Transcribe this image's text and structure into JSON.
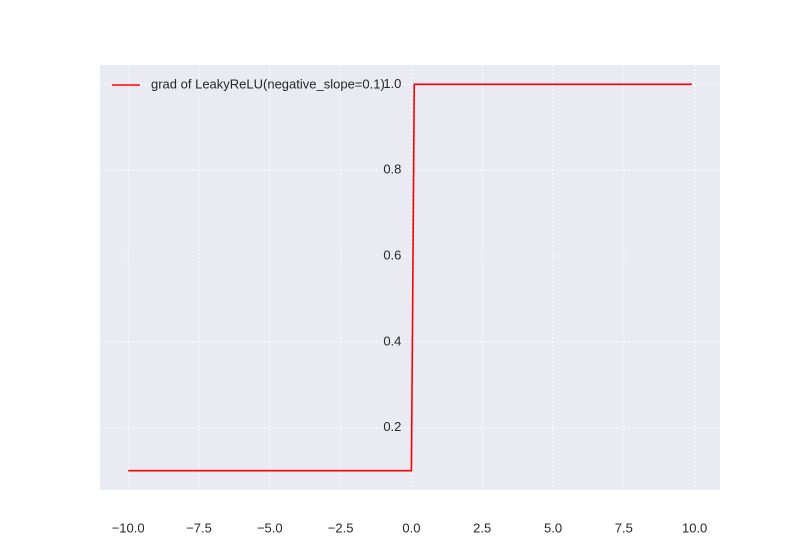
{
  "chart_data": {
    "type": "line",
    "x": [
      -10,
      0,
      0.1,
      9.9
    ],
    "series": [
      {
        "name": "grad of LeakyReLU(negative_slope=0.1)",
        "color": "#ff0000",
        "values": [
          0.1,
          0.1,
          1.0,
          1.0
        ]
      }
    ],
    "xlim": [
      -10.995,
      10.895
    ],
    "xticks": [
      {
        "value": -10,
        "label": "−10.0"
      },
      {
        "value": -7.5,
        "label": "−7.5"
      },
      {
        "value": -5,
        "label": "−5.0"
      },
      {
        "value": -2.5,
        "label": "−2.5"
      },
      {
        "value": 0,
        "label": "0.0"
      },
      {
        "value": 2.5,
        "label": "2.5"
      },
      {
        "value": 5,
        "label": "5.0"
      },
      {
        "value": 7.5,
        "label": "7.5"
      },
      {
        "value": 10,
        "label": "10.0"
      }
    ],
    "ylim": [
      0.055,
      1.045
    ],
    "yticks": [
      0.2,
      0.4,
      0.6,
      0.8,
      {
        "value": 1.0,
        "label": "1.0"
      }
    ],
    "grid": true,
    "legend": "upper left"
  }
}
